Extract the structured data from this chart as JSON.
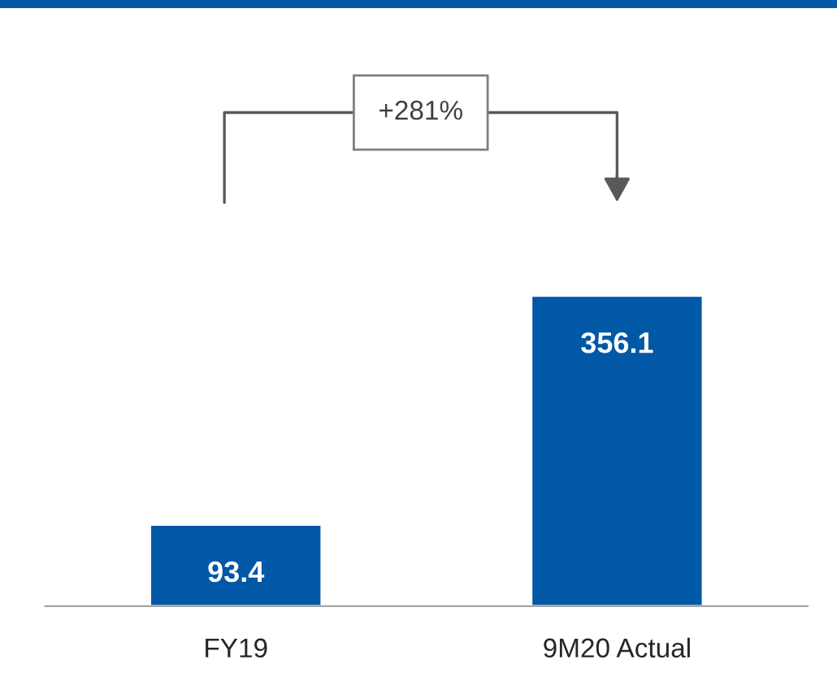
{
  "chart_data": {
    "type": "bar",
    "categories": [
      "FY19",
      "9M20 Actual"
    ],
    "values": [
      93.4,
      356.1
    ],
    "color": "#0058a6",
    "data_labels": true,
    "annotations": [
      "+281%"
    ],
    "legend": false,
    "grid": false
  }
}
